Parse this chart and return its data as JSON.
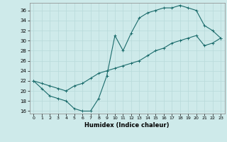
{
  "xlabel": "Humidex (Indice chaleur)",
  "bg_color": "#ceeaea",
  "line_color": "#1a6b6b",
  "xlim": [
    -0.5,
    23.5
  ],
  "ylim": [
    15.5,
    37.5
  ],
  "xticks": [
    0,
    1,
    2,
    3,
    4,
    5,
    6,
    7,
    8,
    9,
    10,
    11,
    12,
    13,
    14,
    15,
    16,
    17,
    18,
    19,
    20,
    21,
    22,
    23
  ],
  "yticks": [
    16,
    18,
    20,
    22,
    24,
    26,
    28,
    30,
    32,
    34,
    36
  ],
  "line1_x": [
    0,
    1,
    2,
    3,
    4,
    5,
    6,
    7,
    8,
    9,
    10,
    11,
    12,
    13,
    14,
    15,
    16,
    17,
    18,
    19,
    20,
    21,
    22,
    23
  ],
  "line1_y": [
    22.0,
    20.5,
    19.0,
    18.5,
    18.0,
    16.5,
    16.0,
    16.0,
    18.5,
    23.0,
    31.0,
    28.0,
    31.5,
    34.5,
    35.5,
    36.0,
    36.5,
    36.5,
    37.0,
    36.5,
    36.0,
    33.0,
    32.0,
    30.5
  ],
  "line2_x": [
    0,
    1,
    2,
    3,
    4,
    5,
    6,
    7,
    8,
    9,
    10,
    11,
    12,
    13,
    14,
    15,
    16,
    17,
    18,
    19,
    20,
    21,
    22,
    23
  ],
  "line2_y": [
    22.0,
    21.5,
    21.0,
    20.5,
    20.0,
    21.0,
    21.5,
    22.5,
    23.5,
    24.0,
    24.5,
    25.0,
    25.5,
    26.0,
    27.0,
    28.0,
    28.5,
    29.5,
    30.0,
    30.5,
    31.0,
    29.0,
    29.5,
    30.5
  ],
  "grid_color": "#b8dada",
  "marker_size": 2.5,
  "lw": 0.8
}
